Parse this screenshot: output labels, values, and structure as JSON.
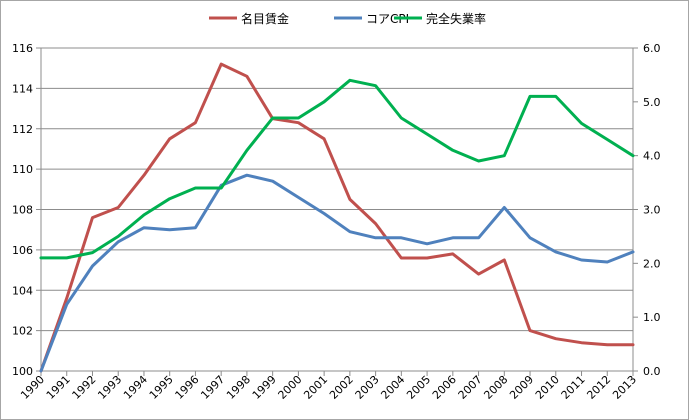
{
  "chart_data": {
    "type": "line",
    "title": "",
    "xlabel": "",
    "ylabel": "",
    "x": [
      "1990",
      "1991",
      "1992",
      "1993",
      "1994",
      "1995",
      "1996",
      "1997",
      "1998",
      "1999",
      "2000",
      "2001",
      "2002",
      "2003",
      "2004",
      "2005",
      "2006",
      "2007",
      "2008",
      "2009",
      "2010",
      "2011",
      "2012",
      "2013"
    ],
    "y_left_lim": [
      100,
      116
    ],
    "y_left_ticks": [
      "100",
      "102",
      "104",
      "106",
      "108",
      "110",
      "112",
      "114",
      "116"
    ],
    "y_right_lim": [
      0.0,
      6.0
    ],
    "y_right_ticks": [
      "0.0",
      "1.0",
      "2.0",
      "3.0",
      "4.0",
      "5.0",
      "6.0"
    ],
    "grid": true,
    "legend_position": "top",
    "series": [
      {
        "name": "名目賃金",
        "axis": "left",
        "color": "#c0504d",
        "values": [
          100.0,
          103.6,
          107.6,
          108.1,
          109.7,
          111.5,
          112.3,
          115.2,
          114.6,
          112.5,
          112.3,
          111.5,
          108.5,
          107.3,
          105.6,
          105.6,
          105.8,
          104.8,
          105.5,
          102.0,
          101.6,
          101.4,
          101.3,
          101.3
        ]
      },
      {
        "name": "コアCPI",
        "axis": "left",
        "color": "#4f81bd",
        "values": [
          100.0,
          103.3,
          105.2,
          106.4,
          107.1,
          107.0,
          107.1,
          109.2,
          109.7,
          109.4,
          108.6,
          107.8,
          106.9,
          106.6,
          106.6,
          106.3,
          106.6,
          106.6,
          108.1,
          106.6,
          105.9,
          105.5,
          105.4,
          105.9
        ]
      },
      {
        "name": "完全失業率",
        "axis": "right",
        "color": "#00b050",
        "values": [
          2.1,
          2.1,
          2.2,
          2.5,
          2.9,
          3.2,
          3.4,
          3.4,
          4.1,
          4.7,
          4.7,
          5.0,
          5.4,
          5.3,
          4.7,
          4.4,
          4.1,
          3.9,
          4.0,
          5.1,
          5.1,
          4.6,
          4.3,
          4.0
        ]
      }
    ]
  }
}
